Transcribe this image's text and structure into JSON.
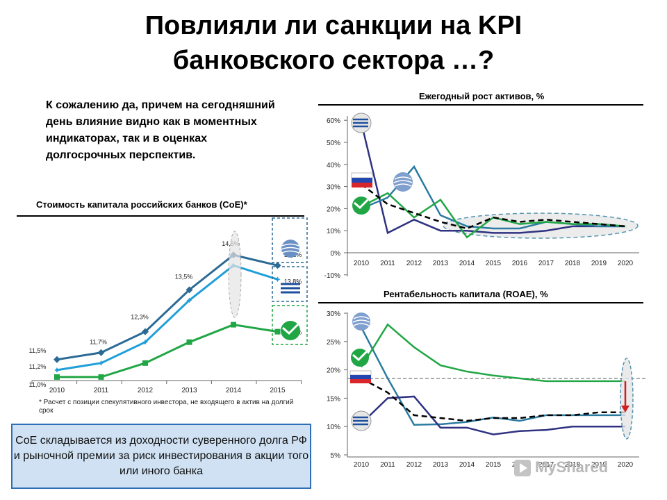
{
  "title_line1": "Повлияли ли санкции на KPI",
  "title_line2": "банковского сектора …?",
  "intro_text": "К сожалению да, причем на сегодняшний день влияние видно как в моментных индикаторах, так и в оценках долгосрочных перспектив.",
  "footnote": "* Расчет с позиции спекулятивного инвестора, не входящего в актив на долгий срок",
  "info_box": "СоЕ складывается из доходности суверенного долга РФ и рыночной премии за риск инвестирования в акции того или иного банка",
  "watermark": "MyShared",
  "colors": {
    "dark_blue": "#2c6a96",
    "light_blue": "#1f9fd8",
    "green": "#21a645",
    "navy": "#2f3280",
    "teal": "#2b7aa0",
    "black_dashed": "#000000",
    "info_bg": "#cfe1f3"
  },
  "icons": [
    "vtb-logo-icon",
    "gazprombank-logo-icon",
    "sberbank-logo-icon",
    "russia-flag-icon"
  ],
  "chart_data": [
    {
      "type": "line",
      "title": "Стоимость капитала российских банков (CoE)*",
      "categories": [
        "2010",
        "2011",
        "2012",
        "2013",
        "2014",
        "2015"
      ],
      "ylim": [
        10.5,
        15.2
      ],
      "series": [
        {
          "key": "gpb",
          "color": "#2c6a96",
          "marker": "diamond",
          "values": [
            11.5,
            11.7,
            12.3,
            13.5,
            14.5,
            14.2
          ]
        },
        {
          "key": "vtb",
          "color": "#1f9fd8",
          "marker": "star",
          "values": [
            11.2,
            11.4,
            12.0,
            13.2,
            14.2,
            13.8
          ]
        },
        {
          "key": "sber",
          "color": "#21a645",
          "marker": "square",
          "values": [
            11.0,
            11.0,
            11.4,
            12.0,
            12.5,
            12.3
          ]
        }
      ],
      "data_labels": [
        {
          "text": "11,5%",
          "x": "2010",
          "value": 11.5
        },
        {
          "text": "11,2%",
          "x": "2010",
          "value": 11.2
        },
        {
          "text": "11,0%",
          "x": "2010",
          "value": 11.0
        },
        {
          "text": "11,7%",
          "x": "2011",
          "value": 11.7
        },
        {
          "text": "12,3%",
          "x": "2012",
          "value": 12.3
        },
        {
          "text": "13,5%",
          "x": "2013",
          "value": 13.5
        },
        {
          "text": "14,5%",
          "x": "2014",
          "value": 14.5
        },
        {
          "text": "14,2%",
          "x": "2015",
          "value": 14.2
        },
        {
          "text": "13,8%",
          "x": "2015",
          "value": 13.8
        },
        {
          "text": "12,3%",
          "x": "2015",
          "value": 12.3
        }
      ]
    },
    {
      "type": "line",
      "title": "Ежегодный рост активов, %",
      "categories": [
        "2010",
        "2011",
        "2012",
        "2013",
        "2014",
        "2015",
        "2016",
        "2017",
        "2018",
        "2019",
        "2020"
      ],
      "ylim": [
        -10,
        60
      ],
      "yticks": [
        "-10%",
        "0%",
        "10%",
        "20%",
        "30%",
        "40%",
        "50%",
        "60%"
      ],
      "series": [
        {
          "key": "vtb",
          "color": "#2f3280",
          "dashed": false,
          "values": [
            59,
            9,
            15,
            10,
            10,
            9,
            9,
            10,
            12,
            12,
            12
          ]
        },
        {
          "key": "gpb",
          "color": "#2b7aa0",
          "dashed": false,
          "values": [
            20,
            25,
            39,
            17,
            12,
            11,
            11,
            14,
            13,
            12,
            12
          ]
        },
        {
          "key": "sber",
          "color": "#21a645",
          "dashed": false,
          "values": [
            21,
            27,
            16,
            24,
            7,
            16,
            13,
            14,
            13,
            13,
            12
          ]
        },
        {
          "key": "rf",
          "color": "#000000",
          "dashed": true,
          "values": [
            31,
            22,
            18,
            14,
            11,
            16,
            14,
            15,
            14,
            13,
            12
          ]
        }
      ]
    },
    {
      "type": "line",
      "title": "Рентабельность капитала (ROAE), %",
      "categories": [
        "2010",
        "2011",
        "2012",
        "2013",
        "2014",
        "2015",
        "2016",
        "2017",
        "2018",
        "2019",
        "2020"
      ],
      "ylim": [
        5,
        30
      ],
      "yticks": [
        "5%",
        "10%",
        "15%",
        "20%",
        "25%",
        "30%"
      ],
      "reference_line": 18.5,
      "series": [
        {
          "key": "gpb",
          "color": "#2b7aa0",
          "dashed": false,
          "values": [
            27.5,
            18.5,
            10.3,
            10.4,
            10.8,
            11.6,
            11.0,
            12.0,
            12.0,
            12.0,
            12.0
          ]
        },
        {
          "key": "sber",
          "color": "#21a645",
          "dashed": false,
          "values": [
            20.5,
            28.0,
            24.0,
            20.8,
            19.7,
            19.0,
            18.5,
            18.0,
            18.0,
            18.0,
            18.0
          ]
        },
        {
          "key": "vtb",
          "color": "#2f3280",
          "dashed": false,
          "values": [
            10.5,
            15.0,
            15.3,
            9.8,
            9.8,
            8.6,
            9.2,
            9.4,
            10.0,
            10.0,
            10.0
          ]
        },
        {
          "key": "rf",
          "color": "#000000",
          "dashed": true,
          "values": [
            18.5,
            16.0,
            12.0,
            11.5,
            11.0,
            11.5,
            11.5,
            12.0,
            12.0,
            12.5,
            12.5
          ]
        }
      ]
    }
  ]
}
